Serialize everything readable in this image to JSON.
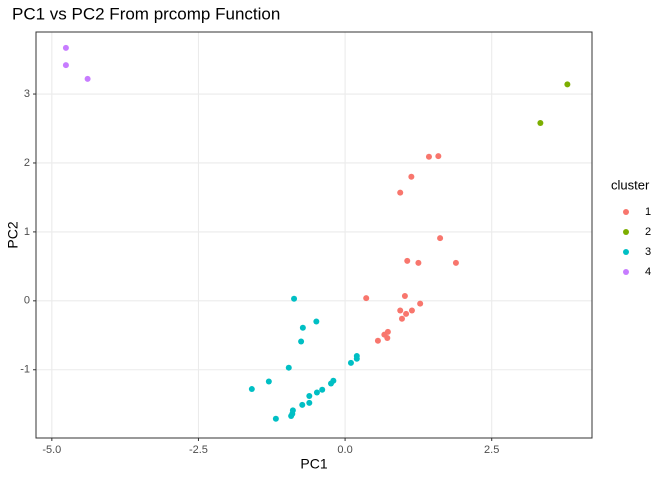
{
  "chart_data": {
    "type": "scatter",
    "title": "PC1 vs PC2 From prcomp Function",
    "x_label": "PC1",
    "y_label": "PC2",
    "legend_title": "cluster",
    "legend_position": "right",
    "grid": true,
    "xlim": [
      -5.27,
      4.21
    ],
    "ylim": [
      -1.99,
      3.9
    ],
    "xticks": [
      {
        "value": -5,
        "label": "-5.0"
      },
      -2.5,
      {
        "value": 0,
        "label": "0.0"
      },
      2.5
    ],
    "yticks": [
      -1,
      0,
      1,
      2,
      3
    ],
    "series": [
      {
        "name": "1",
        "color": "#F8766D",
        "x": [
          1.43,
          1.59,
          1.13,
          0.94,
          1.62,
          1.06,
          1.25,
          1.89,
          0.36,
          1.02,
          0.94,
          1.28,
          1.14,
          1.04,
          0.97,
          0.73,
          0.67,
          0.72,
          0.56
        ],
        "y": [
          2.09,
          2.1,
          1.8,
          1.57,
          0.91,
          0.58,
          0.55,
          0.55,
          0.04,
          0.07,
          -0.14,
          -0.04,
          -0.14,
          -0.19,
          -0.26,
          -0.45,
          -0.49,
          -0.54,
          -0.58
        ]
      },
      {
        "name": "2",
        "color": "#7CAE00",
        "x": [
          3.33,
          3.79
        ],
        "y": [
          2.58,
          3.14
        ]
      },
      {
        "name": "3",
        "color": "#00BFC4",
        "x": [
          -0.87,
          -0.49,
          -0.72,
          -0.75,
          0.2,
          0.2,
          0.1,
          -0.96,
          -1.3,
          -1.59,
          -0.2,
          -0.24,
          -0.39,
          -0.48,
          -0.61,
          -0.61,
          -0.73,
          -0.89,
          -0.9,
          -1.18,
          -0.92
        ],
        "y": [
          0.03,
          -0.3,
          -0.39,
          -0.59,
          -0.8,
          -0.84,
          -0.9,
          -0.97,
          -1.17,
          -1.28,
          -1.16,
          -1.2,
          -1.29,
          -1.33,
          -1.38,
          -1.48,
          -1.51,
          -1.59,
          -1.64,
          -1.71,
          -1.67
        ]
      },
      {
        "name": "4",
        "color": "#C77CFF",
        "x": [
          -4.76,
          -4.76,
          -4.39
        ],
        "y": [
          3.67,
          3.42,
          3.22
        ]
      }
    ]
  }
}
